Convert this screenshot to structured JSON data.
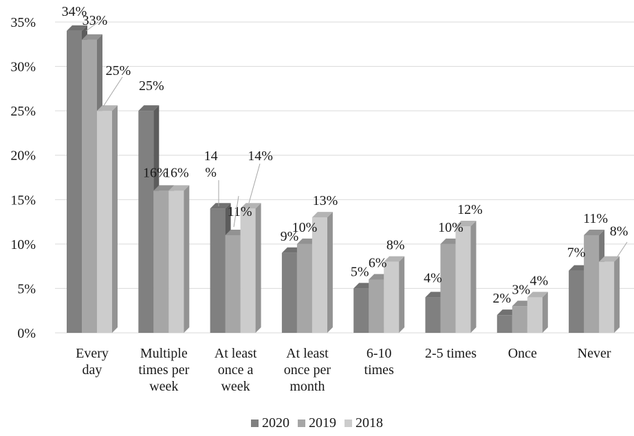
{
  "chart_data": {
    "type": "bar",
    "categories": [
      [
        "Every",
        "day"
      ],
      [
        "Multiple",
        "times per",
        "week"
      ],
      [
        "At least",
        "once a",
        "week"
      ],
      [
        "At least",
        "once per",
        "month"
      ],
      [
        "6-10",
        "times"
      ],
      [
        "2-5 times"
      ],
      [
        "Once"
      ],
      [
        "Never"
      ]
    ],
    "series": [
      {
        "name": "2020",
        "values": [
          34,
          25,
          14,
          9,
          5,
          4,
          2,
          7
        ],
        "color": "#808080"
      },
      {
        "name": "2019",
        "values": [
          33,
          16,
          11,
          10,
          6,
          10,
          3,
          11
        ],
        "color": "#a6a6a6"
      },
      {
        "name": "2018",
        "values": [
          25,
          16,
          14,
          13,
          8,
          12,
          4,
          8
        ],
        "color": "#cccccc"
      }
    ],
    "ylim": [
      0,
      35
    ],
    "yticks": [
      "0%",
      "5%",
      "10%",
      "15%",
      "20%",
      "25%",
      "30%",
      "35%"
    ],
    "ytick_values": [
      0,
      5,
      10,
      15,
      20,
      25,
      30,
      35
    ],
    "data_labels": [
      [
        "34%",
        "25%",
        "14\n%",
        "9%",
        "5%",
        "4%",
        "2%",
        "7%"
      ],
      [
        "33%",
        "16%",
        "11%",
        "10%",
        "6%",
        "10%",
        "3%",
        "11%"
      ],
      [
        "25%",
        "16%",
        "14%",
        "13%",
        "8%",
        "12%",
        "4%",
        "8%"
      ]
    ],
    "grid": true,
    "three_d": true,
    "legend_position": "bottom"
  }
}
